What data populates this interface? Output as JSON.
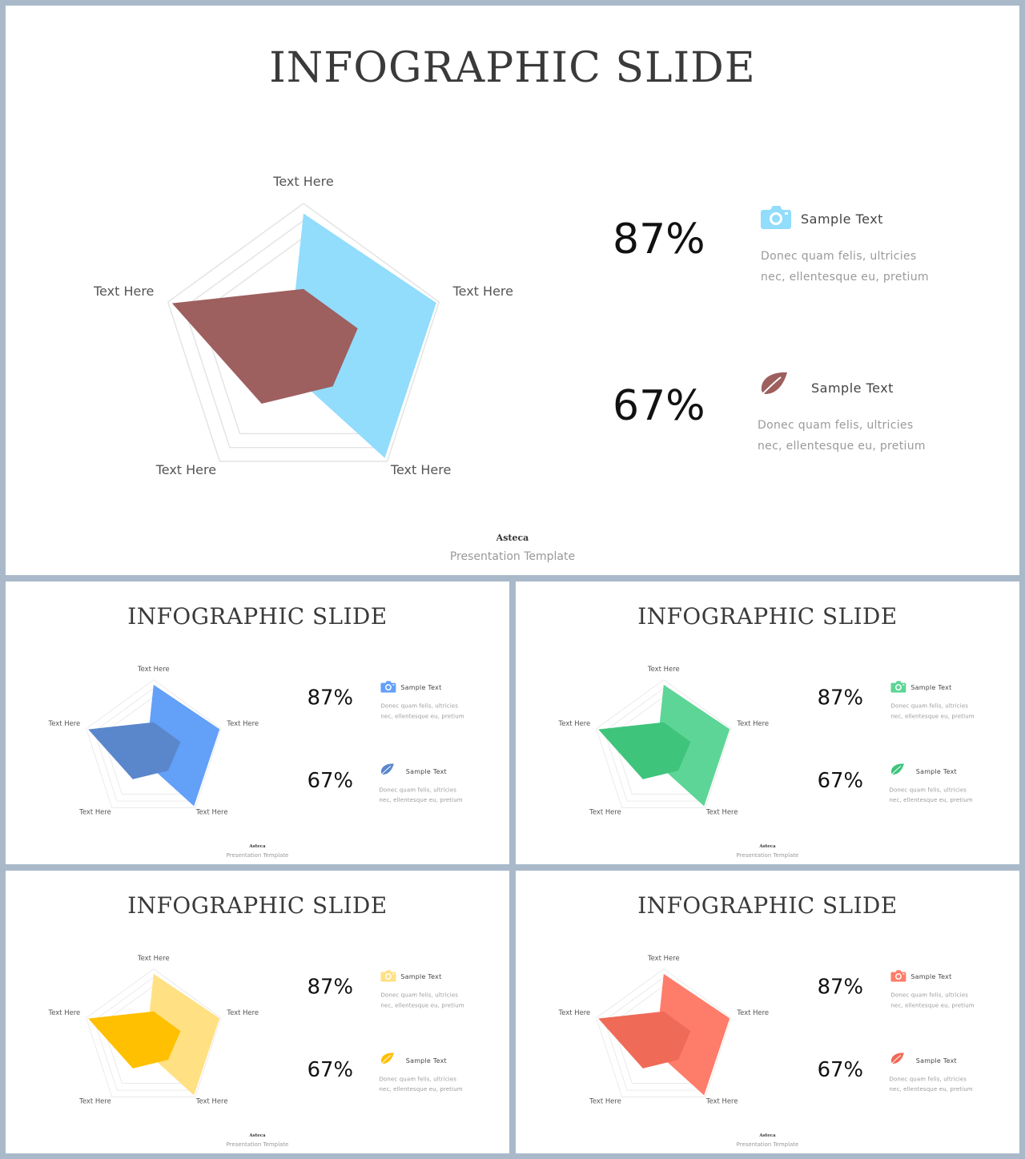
{
  "slides": [
    {
      "id": "main",
      "title": "INFOGRAPHIC SLIDE",
      "outer_color": "#92dcfc",
      "inner_color": "#9e5f5f",
      "icon_color_1": "#92dcfc",
      "icon_color_2": "#9e5f5f"
    },
    {
      "id": "blue",
      "title": "INFOGRAPHIC SLIDE",
      "outer_color": "#63a0f8",
      "inner_color": "#5a87cc",
      "icon_color_1": "#63a0f8",
      "icon_color_2": "#5a87cc"
    },
    {
      "id": "green",
      "title": "INFOGRAPHIC SLIDE",
      "outer_color": "#5dd596",
      "inner_color": "#3fc47c",
      "icon_color_1": "#5dd596",
      "icon_color_2": "#3fc47c"
    },
    {
      "id": "yellow",
      "title": "INFOGRAPHIC SLIDE",
      "outer_color": "#ffe083",
      "inner_color": "#fec000",
      "icon_color_1": "#ffe083",
      "icon_color_2": "#fec000"
    },
    {
      "id": "red",
      "title": "INFOGRAPHIC SLIDE",
      "outer_color": "#fe7d6a",
      "inner_color": "#f06a58",
      "icon_color_1": "#fe7d6a",
      "icon_color_2": "#f06a58"
    }
  ],
  "title": "INFOGRAPHIC SLIDE",
  "axis_labels": [
    "Text Here",
    "Text Here",
    "Text Here",
    "Text Here",
    "Text Here"
  ],
  "stats": [
    {
      "value": "87%",
      "icon": "camera-icon",
      "label": "Sample Text",
      "desc_line1": "Donec quam felis, ultricies",
      "desc_line2": "nec, ellentesque eu, pretium"
    },
    {
      "value": "67%",
      "icon": "leaf-icon",
      "label": "Sample Text",
      "desc_line1": "Donec quam felis, ultricies",
      "desc_line2": "nec, ellentesque eu, pretium"
    }
  ],
  "footer": {
    "brand": "Asteca",
    "subtitle": "Presentation Template"
  },
  "chart_data": {
    "type": "radar",
    "categories": [
      "Text Here",
      "Text Here",
      "Text Here",
      "Text Here",
      "Text Here"
    ],
    "grid_levels": 3,
    "range": [
      0,
      1
    ],
    "series": [
      {
        "values": [
          0.93,
          0.98,
          0.97,
          0.2,
          0.1
        ]
      },
      {
        "values": [
          0.4,
          0.4,
          0.35,
          0.5,
          0.97
        ]
      }
    ]
  }
}
